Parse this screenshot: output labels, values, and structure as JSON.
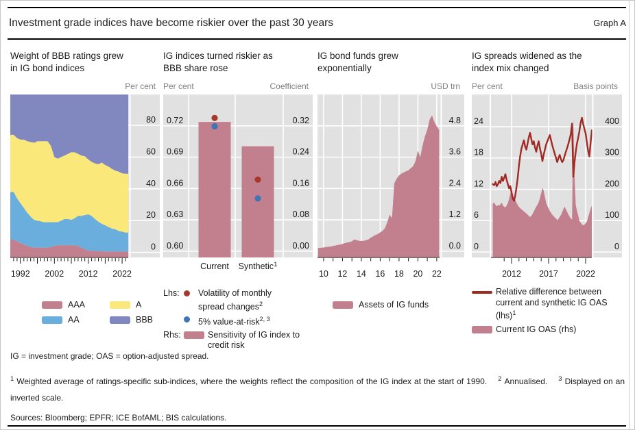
{
  "header": {
    "title": "Investment grade indices have become riskier over the past 30 years",
    "graph_label": "Graph A"
  },
  "colors": {
    "pink": "#c2808f",
    "blue": "#6aaede",
    "yellow": "#fae97a",
    "purple": "#8188c0",
    "dark_red_line": "#9e2b23",
    "red_dot": "#a8382e",
    "blue_dot": "#3f74b5",
    "plot_bg": "#e1e1e1",
    "unit_text": "#7f7f7f",
    "text": "#1a1a1a"
  },
  "chart_data": [
    {
      "type": "area-stacked",
      "title": "Weight of BBB ratings grew in IG bond indices",
      "title_lines": [
        "Weight of BBB ratings grew",
        "in IG bond indices"
      ],
      "unit_right": "Per cent",
      "ylabel": "Per cent",
      "yticks_labels": [
        "0",
        "20",
        "40",
        "60",
        "80"
      ],
      "yticks_values": [
        0,
        20,
        40,
        60,
        80
      ],
      "ylim": [
        -3.2,
        99.4
      ],
      "xtick_labels": [
        "1992",
        "2002",
        "2012",
        "2022"
      ],
      "xtick_years": [
        1992,
        2002,
        2012,
        2022
      ],
      "major_tick_years": [
        1992,
        1997,
        2002,
        2007,
        2012,
        2017,
        2022
      ],
      "minor_ticks": {
        "from": 1990,
        "to": 2023
      },
      "x": [
        1989,
        1990,
        1991,
        1992,
        1993,
        1994,
        1995,
        1996,
        1997,
        1998,
        1999,
        2000,
        2001,
        2002,
        2003,
        2004,
        2005,
        2006,
        2007,
        2008,
        2009,
        2010,
        2011,
        2012,
        2013,
        2014,
        2015,
        2016,
        2017,
        2018,
        2019,
        2020,
        2021,
        2022,
        2023,
        2023.8
      ],
      "series": [
        {
          "name": "AAA",
          "color": "#c2808f",
          "values": [
            8,
            8,
            7,
            6,
            5,
            4,
            3.5,
            3,
            3,
            3,
            3,
            3,
            3.5,
            4,
            4.5,
            4.5,
            4.5,
            4.5,
            4.5,
            4.5,
            4,
            3,
            2,
            1,
            1,
            1,
            0.8,
            0.7,
            0.6,
            0.6,
            0.5,
            0.5,
            0.5,
            0.5,
            0.5,
            0.5
          ]
        },
        {
          "name": "AA",
          "color": "#6aaede",
          "values": [
            30,
            30,
            27,
            25,
            23,
            21,
            19,
            17.5,
            17,
            16.5,
            16,
            16,
            15.5,
            15,
            14.5,
            15.5,
            16.5,
            16.5,
            16,
            17,
            19,
            20,
            21.5,
            23,
            22,
            20,
            18.5,
            17.3,
            16.4,
            15.4,
            14.5,
            14,
            13,
            12.5,
            12,
            12
          ]
        },
        {
          "name": "A",
          "color": "#fae97a",
          "values": [
            36,
            36,
            38,
            40,
            43,
            45,
            47,
            48.5,
            50,
            50.5,
            51,
            51,
            48,
            41,
            40,
            40,
            40,
            41,
            42.5,
            41.5,
            39,
            38,
            37,
            34.5,
            34,
            35,
            36.2,
            38.5,
            38,
            38,
            37.5,
            37,
            37.3,
            36.8,
            37,
            37
          ]
        },
        {
          "name": "BBB",
          "color": "#8188c0",
          "values": [
            26,
            26,
            28,
            29,
            29,
            30,
            30.5,
            31,
            30,
            30,
            30,
            30,
            33,
            40,
            41,
            40,
            39,
            38,
            37,
            37,
            38,
            39,
            39.5,
            41.5,
            43,
            44,
            44.5,
            43.5,
            45,
            46,
            47.5,
            48.5,
            49.2,
            50.2,
            50.5,
            50.5
          ]
        }
      ]
    },
    {
      "type": "bar-dots",
      "title": "IG indices turned riskier as BBB share rose",
      "title_lines": [
        "IG indices turned riskier as",
        "BBB share rose"
      ],
      "unit_left": "Per cent",
      "unit_right": "Coefficient",
      "categories": [
        {
          "label": "Current",
          "sup": ""
        },
        {
          "label": "Synthetic",
          "sup": "1"
        }
      ],
      "bars": {
        "name": "Sensitivity of IG index to credit risk",
        "axis": "rhs",
        "color": "#c2808f",
        "values": [
          0.33,
          0.268
        ]
      },
      "dots": [
        {
          "name": "Volatility of monthly spread changes",
          "sup": "2",
          "axis": "lhs",
          "color": "#a8382e",
          "values": [
            0.7275,
            0.6685
          ]
        },
        {
          "name": "5% value-at-risk",
          "sup": "2, 3",
          "axis": "lhs",
          "color": "#3f74b5",
          "values": [
            0.7195,
            0.6505
          ]
        }
      ],
      "legend_lhs_prefix": "Lhs:",
      "legend_rhs_prefix": "Rhs:",
      "yticks_left_labels": [
        "0.60",
        "0.63",
        "0.66",
        "0.69",
        "0.72"
      ],
      "yticks_left_values": [
        0.6,
        0.63,
        0.66,
        0.69,
        0.72
      ],
      "yticks_right_labels": [
        "0.00",
        "0.08",
        "0.16",
        "0.24",
        "0.32"
      ],
      "yticks_right_values": [
        0.0,
        0.08,
        0.16,
        0.24,
        0.32
      ],
      "ylim_left": [
        0.594,
        0.75
      ],
      "ylim_right": [
        -0.0157,
        0.4
      ]
    },
    {
      "type": "area",
      "title": "IG bond funds grew exponentially",
      "title_lines": [
        "IG bond funds grew",
        "exponentially"
      ],
      "unit_right": "USD trn",
      "name": "Assets of IG funds",
      "color": "#c2808f",
      "yticks_labels": [
        "0.0",
        "1.2",
        "2.4",
        "3.6",
        "4.8"
      ],
      "yticks_values": [
        0,
        1.2,
        2.4,
        3.6,
        4.8
      ],
      "ylim": [
        -0.24,
        6.0
      ],
      "xtick_labels": [
        "10",
        "12",
        "14",
        "16",
        "18",
        "20",
        "22"
      ],
      "xtick_years": [
        2010,
        2012,
        2014,
        2016,
        2018,
        2020,
        2022
      ],
      "minor_ticks": {
        "from": 2010,
        "to": 2022
      },
      "x": [
        2009.4,
        2010,
        2010.25,
        2010.5,
        2010.75,
        2011,
        2011.25,
        2011.5,
        2011.75,
        2012,
        2012.25,
        2012.5,
        2012.75,
        2013,
        2013.25,
        2013.5,
        2013.75,
        2014,
        2014.25,
        2014.5,
        2014.75,
        2015,
        2015.25,
        2015.5,
        2015.75,
        2016,
        2016.25,
        2016.5,
        2016.75,
        2017,
        2017.25,
        2017.5,
        2017.75,
        2018,
        2018.25,
        2018.5,
        2018.75,
        2019,
        2019.25,
        2019.5,
        2019.75,
        2020,
        2020.25,
        2020.5,
        2020.75,
        2021,
        2021.25,
        2021.5,
        2021.75,
        2022,
        2022.25
      ],
      "values": [
        0.12,
        0.14,
        0.16,
        0.17,
        0.18,
        0.2,
        0.22,
        0.24,
        0.25,
        0.28,
        0.31,
        0.33,
        0.35,
        0.38,
        0.45,
        0.42,
        0.4,
        0.39,
        0.4,
        0.42,
        0.45,
        0.52,
        0.57,
        0.62,
        0.66,
        0.72,
        0.78,
        0.88,
        1.1,
        1.4,
        1.26,
        2.6,
        2.78,
        2.9,
        2.97,
        3.02,
        3.06,
        3.1,
        3.18,
        3.26,
        3.45,
        3.85,
        3.6,
        4.05,
        4.4,
        4.65,
        5.05,
        5.2,
        4.95,
        4.78,
        4.65
      ]
    },
    {
      "type": "line-area",
      "title": "IG spreads widened as the index mix changed",
      "title_lines": [
        "IG spreads widened as the",
        "index mix changed"
      ],
      "unit_left": "Per cent",
      "unit_right": "Basis points",
      "yticks_left_labels": [
        "0",
        "6",
        "12",
        "18",
        "24"
      ],
      "yticks_left_values": [
        0,
        6,
        12,
        18,
        24
      ],
      "yticks_right_labels": [
        "0",
        "100",
        "200",
        "300",
        "400"
      ],
      "yticks_right_values": [
        0,
        100,
        200,
        300,
        400
      ],
      "ylim_left": [
        -1.05,
        30.16
      ],
      "ylim_right": [
        -17.5,
        502.7
      ],
      "xtick_labels": [
        "2012",
        "2017",
        "2022"
      ],
      "xtick_years": [
        2012,
        2017,
        2022
      ],
      "minor_ticks": {
        "from": 2011,
        "to": 2023
      },
      "x": [
        2009.45,
        2009.67,
        2009.83,
        2010,
        2010.17,
        2010.33,
        2010.5,
        2010.67,
        2010.83,
        2011,
        2011.17,
        2011.33,
        2011.5,
        2011.67,
        2011.83,
        2012,
        2012.17,
        2012.33,
        2012.5,
        2012.67,
        2012.83,
        2013,
        2013.17,
        2013.33,
        2013.5,
        2013.67,
        2013.83,
        2014,
        2014.17,
        2014.33,
        2014.5,
        2014.67,
        2014.83,
        2015,
        2015.17,
        2015.33,
        2015.5,
        2015.67,
        2015.83,
        2016,
        2016.17,
        2016.33,
        2016.5,
        2016.67,
        2016.83,
        2017,
        2017.17,
        2017.33,
        2017.5,
        2017.67,
        2017.83,
        2018,
        2018.17,
        2018.33,
        2018.5,
        2018.67,
        2018.83,
        2019,
        2019.17,
        2019.33,
        2019.5,
        2019.67,
        2019.83,
        2020,
        2020.17,
        2020.33,
        2020.5,
        2020.67,
        2020.83,
        2021,
        2021.17,
        2021.33,
        2021.5,
        2021.67,
        2021.83,
        2022,
        2022.17,
        2022.33,
        2022.5,
        2022.67,
        2022.83
      ],
      "line": {
        "name": "Relative difference between current and synthetic IG OAS (lhs)",
        "sup": "1",
        "axis": "lhs",
        "color": "#9e2b23",
        "values": [
          13.0,
          12.8,
          13.4,
          12.6,
          13.0,
          13.6,
          13.2,
          14.4,
          13.6,
          14.2,
          14.9,
          13.8,
          13.0,
          12.2,
          12.6,
          11.4,
          10.2,
          9.8,
          10.8,
          12.4,
          14.2,
          16.6,
          18.4,
          19.8,
          20.6,
          21.4,
          20.2,
          19.6,
          20.8,
          22.0,
          22.8,
          21.6,
          20.6,
          21.2,
          20.0,
          19.2,
          20.4,
          21.2,
          19.8,
          18.8,
          17.4,
          18.6,
          19.6,
          20.6,
          21.2,
          21.8,
          22.4,
          21.4,
          20.4,
          19.6,
          18.8,
          18.0,
          17.2,
          18.0,
          18.6,
          17.8,
          17.2,
          17.6,
          18.4,
          19.2,
          19.9,
          20.7,
          21.6,
          22.6,
          24.6,
          14.4,
          17.2,
          19.2,
          20.8,
          21.9,
          23.2,
          24.8,
          25.7,
          24.5,
          23.6,
          22.7,
          21.0,
          19.4,
          18.3,
          20.8,
          23.3
        ]
      },
      "area": {
        "name": "Current IG OAS (rhs)",
        "axis": "rhs",
        "color": "#c2808f",
        "values": [
          155,
          158,
          150,
          146,
          150,
          148,
          152,
          158,
          148,
          145,
          142,
          148,
          156,
          170,
          186,
          196,
          184,
          172,
          166,
          158,
          150,
          144,
          140,
          136,
          133,
          129,
          126,
          123,
          119,
          115,
          112,
          115,
          121,
          129,
          137,
          145,
          151,
          159,
          172,
          188,
          205,
          196,
          176,
          157,
          147,
          139,
          131,
          125,
          119,
          114,
          111,
          107,
          101,
          106,
          112,
          118,
          127,
          137,
          145,
          136,
          128,
          120,
          113,
          107,
          103,
          428,
          240,
          150,
          131,
          117,
          99,
          93,
          89,
          85,
          87,
          92,
          97,
          110,
          124,
          137,
          148
        ]
      }
    }
  ],
  "footer": {
    "abbreviations": "IG = investment grade; OAS = option-adjusted spread.",
    "footnotes": [
      {
        "sup": "1",
        "text": "Weighted average of ratings-specific sub-indices, where the weights reflect the composition of the IG index at the start of 1990."
      },
      {
        "sup": "2",
        "text": "Annualised."
      },
      {
        "sup": "3",
        "text": "Displayed on an inverted scale."
      }
    ],
    "sources": "Sources: Bloomberg; EPFR; ICE BofAML; BIS calculations."
  }
}
